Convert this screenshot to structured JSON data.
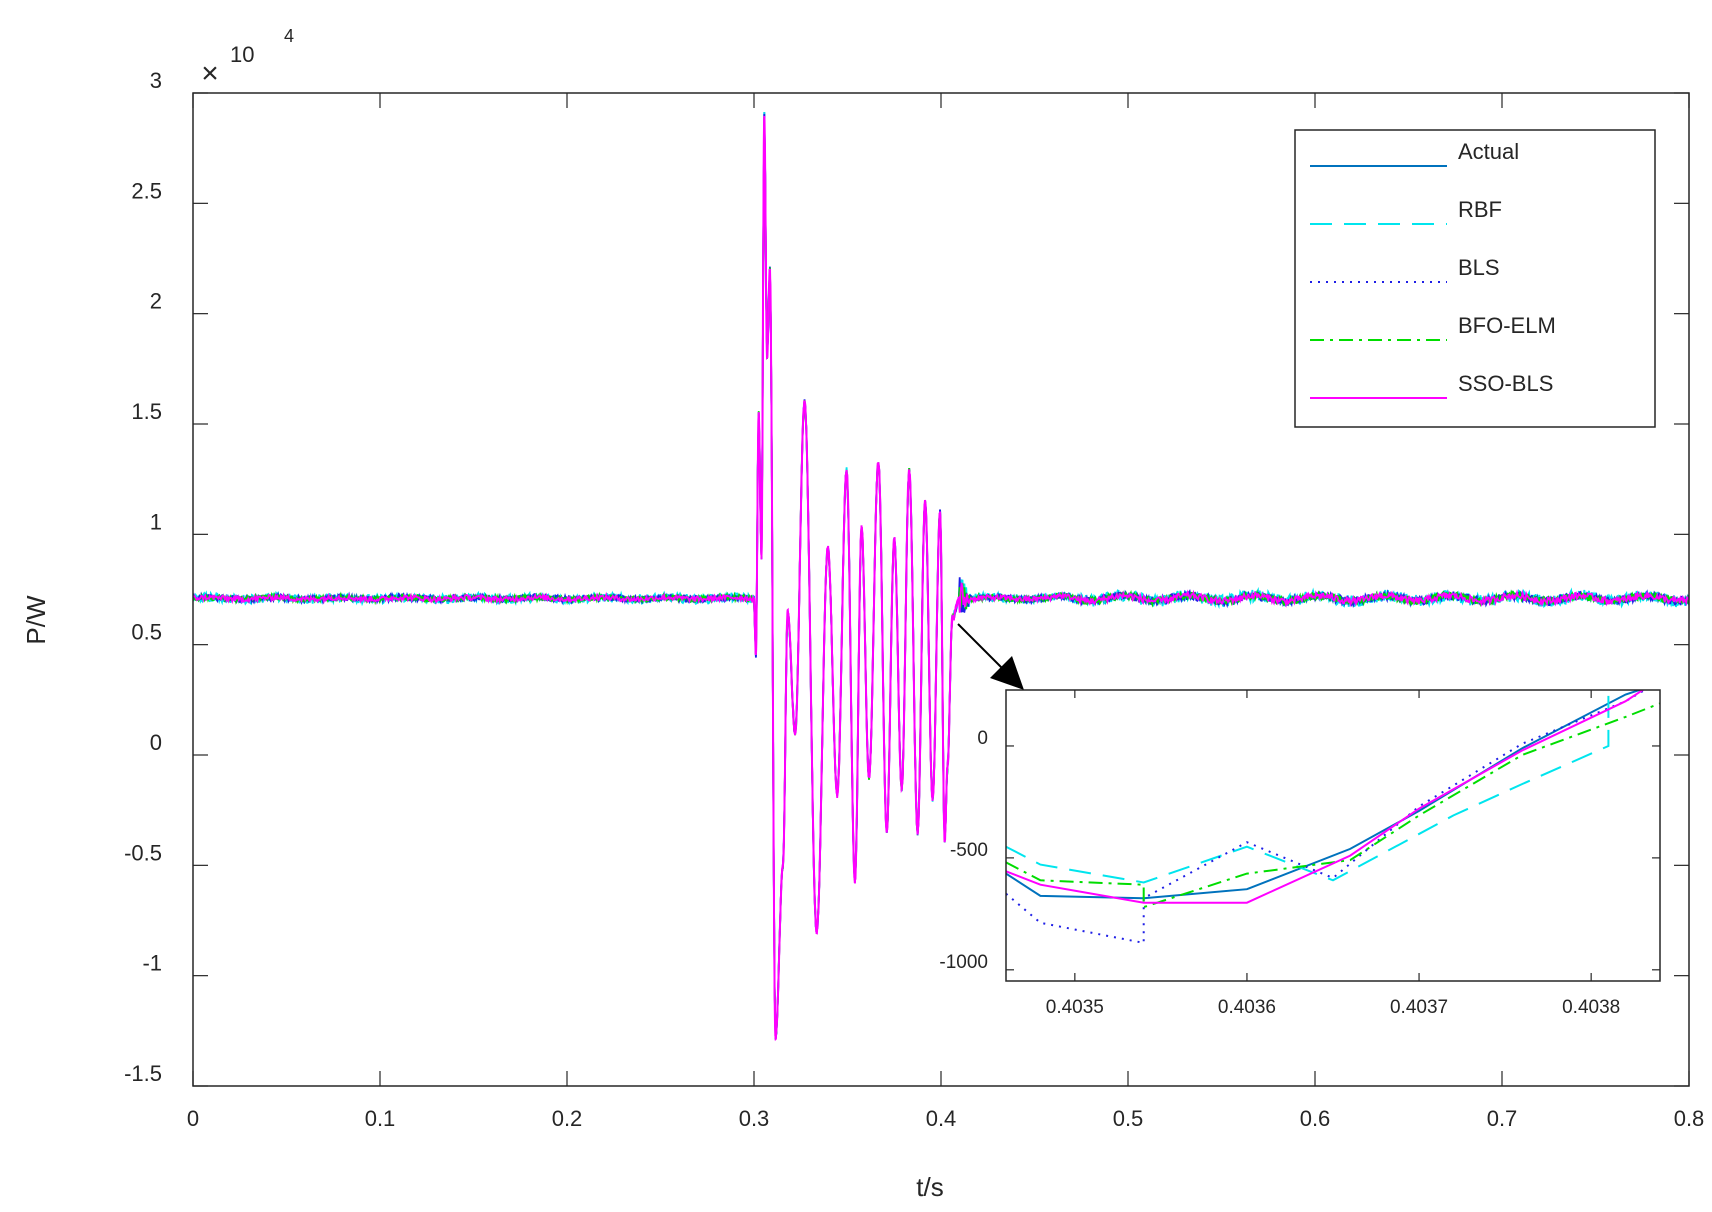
{
  "chart_data": {
    "type": "line",
    "title": "",
    "xlabel": "t/s",
    "ylabel": "P/W",
    "y_exponent_label": "10",
    "y_exponent_power": "4",
    "xlim": [
      0,
      0.8
    ],
    "ylim": [
      -15000,
      30000
    ],
    "x_ticks": [
      0,
      0.1,
      0.2,
      0.3,
      0.4,
      0.5,
      0.6,
      0.7,
      0.8
    ],
    "x_tick_labels": [
      "0",
      "0.1",
      "0.2",
      "0.3",
      "0.4",
      "0.5",
      "0.6",
      "0.7",
      "0.8"
    ],
    "y_ticks": [
      -15000,
      -10000,
      -5000,
      0,
      5000,
      10000,
      15000,
      20000,
      25000,
      30000
    ],
    "y_tick_labels": [
      "-1.5",
      "-1",
      "-0.5",
      "0",
      "0.5",
      "1",
      "1.5",
      "2",
      "2.5",
      "3"
    ],
    "grid": false,
    "legend_position": "top-right",
    "steady_value": 7100,
    "transient_interval": [
      0.3,
      0.41
    ],
    "transient_peaks": [
      [
        0.3,
        7100
      ],
      [
        0.301,
        4500
      ],
      [
        0.3025,
        15500
      ],
      [
        0.304,
        9000
      ],
      [
        0.3055,
        29000
      ],
      [
        0.307,
        18000
      ],
      [
        0.3085,
        22000
      ],
      [
        0.3115,
        -12800
      ],
      [
        0.3155,
        -5000
      ],
      [
        0.318,
        6500
      ],
      [
        0.322,
        1000
      ],
      [
        0.327,
        16000
      ],
      [
        0.3335,
        -8000
      ],
      [
        0.3395,
        9400
      ],
      [
        0.3445,
        -1800
      ],
      [
        0.3495,
        12900
      ],
      [
        0.354,
        -5700
      ],
      [
        0.3575,
        10300
      ],
      [
        0.3615,
        -1000
      ],
      [
        0.3665,
        13300
      ],
      [
        0.371,
        -3400
      ],
      [
        0.375,
        9800
      ],
      [
        0.379,
        -1500
      ],
      [
        0.383,
        12900
      ],
      [
        0.3875,
        -3500
      ],
      [
        0.3915,
        11500
      ],
      [
        0.3955,
        -2000
      ],
      [
        0.3995,
        11000
      ],
      [
        0.402,
        -3900
      ],
      [
        0.4035,
        -500
      ],
      [
        0.406,
        6200
      ],
      [
        0.41,
        7100
      ]
    ],
    "series": [
      {
        "name": "Actual",
        "color": "#0072bd",
        "dash": "solid"
      },
      {
        "name": "RBF",
        "color": "#00e5ee",
        "dash": "dashed"
      },
      {
        "name": "BLS",
        "color": "#1f1fe6",
        "dash": "dotted"
      },
      {
        "name": "BFO-ELM",
        "color": "#00dd00",
        "dash": "dashdot"
      },
      {
        "name": "SSO-BLS",
        "color": "#ff00ff",
        "dash": "solid"
      }
    ],
    "inset": {
      "xlim": [
        0.40346,
        0.40384
      ],
      "ylim": [
        -1050,
        250
      ],
      "x_ticks": [
        0.4035,
        0.4036,
        0.4037,
        0.4038
      ],
      "x_tick_labels": [
        "0.4035",
        "0.4036",
        "0.4037",
        "0.4038"
      ],
      "y_ticks": [
        0,
        -500,
        -1000
      ],
      "y_tick_labels": [
        "0",
        "-500",
        "-1000"
      ],
      "series_points": {
        "Actual": [
          [
            0.40346,
            -570
          ],
          [
            0.40348,
            -670
          ],
          [
            0.40354,
            -680
          ],
          [
            0.4036,
            -640
          ],
          [
            0.40366,
            -460
          ],
          [
            0.4037,
            -290
          ],
          [
            0.40376,
            -10
          ],
          [
            0.40382,
            230
          ],
          [
            0.40384,
            280
          ]
        ],
        "RBF": [
          [
            0.40346,
            -450
          ],
          [
            0.40348,
            -530
          ],
          [
            0.40354,
            -610
          ],
          [
            0.4036,
            -450
          ],
          [
            0.40365,
            -600
          ],
          [
            0.40372,
            -310
          ],
          [
            0.40376,
            -170
          ],
          [
            0.40381,
            0
          ],
          [
            0.40381,
            290
          ],
          [
            0.40384,
            290
          ]
        ],
        "BLS": [
          [
            0.40346,
            -660
          ],
          [
            0.40348,
            -790
          ],
          [
            0.40354,
            -880
          ],
          [
            0.40354,
            -680
          ],
          [
            0.4036,
            -430
          ],
          [
            0.40365,
            -590
          ],
          [
            0.4037,
            -270
          ],
          [
            0.40376,
            10
          ],
          [
            0.40382,
            200
          ],
          [
            0.40384,
            290
          ]
        ],
        "BFO-ELM": [
          [
            0.40346,
            -520
          ],
          [
            0.40348,
            -600
          ],
          [
            0.40354,
            -620
          ],
          [
            0.40354,
            -720
          ],
          [
            0.4036,
            -570
          ],
          [
            0.40366,
            -510
          ],
          [
            0.4037,
            -310
          ],
          [
            0.40376,
            -40
          ],
          [
            0.40382,
            130
          ],
          [
            0.40384,
            190
          ]
        ],
        "SSO-BLS": [
          [
            0.40346,
            -560
          ],
          [
            0.40348,
            -620
          ],
          [
            0.40354,
            -700
          ],
          [
            0.4036,
            -700
          ],
          [
            0.40366,
            -490
          ],
          [
            0.4037,
            -280
          ],
          [
            0.40376,
            -20
          ],
          [
            0.40382,
            200
          ],
          [
            0.40384,
            300
          ]
        ]
      }
    }
  }
}
